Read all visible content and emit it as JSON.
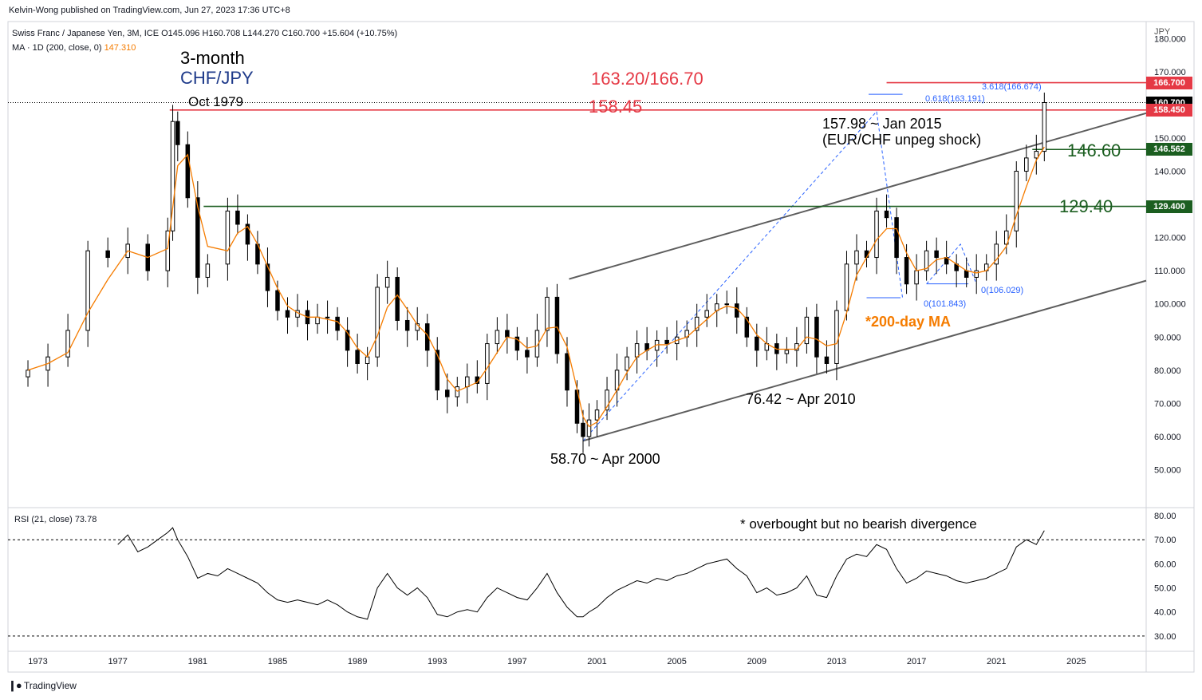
{
  "header": {
    "publisher": "Kelvin-Wong published on TradingView.com, Jun 27, 2023 17:36 UTC+8",
    "symbol_line": "Swiss Franc / Japanese Yen, 3M, ICE",
    "ohlc": {
      "o": "O145.096",
      "h": "H160.708",
      "l": "L144.270",
      "c": "C160.700",
      "chg": "+15.604 (+10.75%)"
    },
    "ma_line": "MA · 1D (200, close, 0)",
    "ma_value": "147.310",
    "rsi_line": "RSI (21, close)",
    "rsi_value": "73.78"
  },
  "footer": {
    "brand": "TradingView"
  },
  "axis": {
    "currency": "JPY"
  },
  "annotations": {
    "title1": "3-month",
    "title2": "CHF/JPY",
    "oct1979": "Oct 1979",
    "lvl_163": "163.20/166.70",
    "lvl_158": "158.45",
    "jan2015_1": "157.98 ~ Jan 2015",
    "jan2015_2": "(EUR/CHF unpeg shock)",
    "lvl_146": "146.60",
    "lvl_129": "129.40",
    "ma200": "*200-day MA",
    "apr2010": "76.42 ~ Apr 2010",
    "apr2000": "58.70 ~ Apr 2000",
    "fib618": "0.618(163.191)",
    "fib3618": "3.618(166.674)",
    "fib0a": "0(101.843)",
    "fib0b": "0(106.029)",
    "rsi_note": "* overbought but no bearish divergence"
  },
  "price_tags": [
    {
      "value": "166.700",
      "color": "#e53945"
    },
    {
      "value": "160.700",
      "color": "#000000"
    },
    {
      "value": "158.450",
      "color": "#e53945"
    },
    {
      "value": "146.562",
      "color": "#1b5e20"
    },
    {
      "value": "129.400",
      "color": "#1b5e20"
    }
  ],
  "colors": {
    "up": "#ffffff",
    "down": "#000000",
    "ma": "#f57c00",
    "resistance": "#e53945",
    "support": "#1b5e20",
    "channel": "#5d5d5d",
    "fib": "#2962ff"
  },
  "chart_data": [
    {
      "type": "candlestick",
      "title": "Swiss Franc / Japanese Yen, 3M, ICE",
      "x_range": [
        1971.5,
        2028.5
      ],
      "ylim": [
        40,
        182
      ],
      "x_ticks": [
        "1973",
        "1977",
        "1981",
        "1985",
        "1989",
        "1993",
        "1997",
        "2001",
        "2005",
        "2009",
        "2013",
        "2017",
        "2021",
        "2025"
      ],
      "y_ticks": [
        "50.000",
        "60.000",
        "70.000",
        "80.000",
        "90.000",
        "100.000",
        "110.000",
        "120.000",
        "130.000",
        "140.000",
        "150.000",
        "160.000",
        "170.000",
        "180.000"
      ],
      "series_close": [
        [
          1972.5,
          80
        ],
        [
          1973.5,
          84
        ],
        [
          1974.5,
          92
        ],
        [
          1975.5,
          116
        ],
        [
          1976.5,
          114
        ],
        [
          1977.5,
          118
        ],
        [
          1978.5,
          110
        ],
        [
          1979.5,
          122
        ],
        [
          1979.75,
          155
        ],
        [
          1980.0,
          148
        ],
        [
          1980.5,
          132
        ],
        [
          1981.0,
          108
        ],
        [
          1981.5,
          112
        ],
        [
          1982.5,
          128
        ],
        [
          1983.0,
          124
        ],
        [
          1983.5,
          118
        ],
        [
          1984.0,
          112
        ],
        [
          1984.5,
          104
        ],
        [
          1985.0,
          98
        ],
        [
          1985.5,
          96
        ],
        [
          1986.0,
          98
        ],
        [
          1986.5,
          94
        ],
        [
          1987.0,
          96
        ],
        [
          1987.5,
          96
        ],
        [
          1988.0,
          92
        ],
        [
          1988.5,
          86
        ],
        [
          1989.0,
          82
        ],
        [
          1989.5,
          84
        ],
        [
          1990.0,
          105
        ],
        [
          1990.5,
          108
        ],
        [
          1991.0,
          95
        ],
        [
          1991.5,
          92
        ],
        [
          1992.0,
          94
        ],
        [
          1992.5,
          86
        ],
        [
          1993.0,
          74
        ],
        [
          1993.5,
          72
        ],
        [
          1994.0,
          75
        ],
        [
          1994.5,
          78
        ],
        [
          1995.0,
          76
        ],
        [
          1995.5,
          88
        ],
        [
          1996.0,
          92
        ],
        [
          1996.5,
          90
        ],
        [
          1997.0,
          86
        ],
        [
          1997.5,
          84
        ],
        [
          1998.0,
          92
        ],
        [
          1998.5,
          102
        ],
        [
          1999.0,
          85
        ],
        [
          1999.5,
          74
        ],
        [
          2000.0,
          64
        ],
        [
          2000.3,
          60
        ],
        [
          2000.6,
          65
        ],
        [
          2001.0,
          68
        ],
        [
          2001.5,
          74
        ],
        [
          2002.0,
          80
        ],
        [
          2002.5,
          84
        ],
        [
          2003.0,
          88
        ],
        [
          2003.5,
          86
        ],
        [
          2004.0,
          89
        ],
        [
          2004.5,
          88
        ],
        [
          2005.0,
          90
        ],
        [
          2005.5,
          92
        ],
        [
          2006.0,
          96
        ],
        [
          2006.5,
          98
        ],
        [
          2007.0,
          100
        ],
        [
          2007.5,
          100
        ],
        [
          2008.0,
          96
        ],
        [
          2008.5,
          90
        ],
        [
          2009.0,
          86
        ],
        [
          2009.5,
          88
        ],
        [
          2010.0,
          85
        ],
        [
          2010.5,
          86
        ],
        [
          2011.0,
          88
        ],
        [
          2011.5,
          96
        ],
        [
          2012.0,
          84
        ],
        [
          2012.5,
          82
        ],
        [
          2013.0,
          98
        ],
        [
          2013.5,
          112
        ],
        [
          2014.0,
          116
        ],
        [
          2014.5,
          114
        ],
        [
          2015.0,
          128
        ],
        [
          2015.5,
          126
        ],
        [
          2016.0,
          114
        ],
        [
          2016.5,
          106
        ],
        [
          2017.0,
          110
        ],
        [
          2017.5,
          116
        ],
        [
          2018.0,
          114
        ],
        [
          2018.5,
          112
        ],
        [
          2019.0,
          110
        ],
        [
          2019.5,
          108
        ],
        [
          2020.0,
          110
        ],
        [
          2020.5,
          112
        ],
        [
          2021.0,
          118
        ],
        [
          2021.5,
          122
        ],
        [
          2022.0,
          140
        ],
        [
          2022.5,
          144
        ],
        [
          2023.0,
          146
        ],
        [
          2023.4,
          160.7
        ]
      ],
      "series_ma200": "follows close, 147.310 at last bar",
      "levels": [
        {
          "value": 166.7,
          "label": "163.20/166.70"
        },
        {
          "value": 158.45,
          "label": "158.45"
        },
        {
          "value": 146.562,
          "label": "146.60"
        },
        {
          "value": 129.4,
          "label": "129.40"
        }
      ],
      "channel": {
        "lower": [
          [
            2000.3,
            58.7
          ],
          [
            2028.5,
            107
          ]
        ],
        "upper": [
          [
            2000.3,
            109
          ],
          [
            2028.5,
            157
          ]
        ]
      }
    },
    {
      "type": "line",
      "title": "RSI (21, close)",
      "ylim": [
        25,
        82
      ],
      "y_ticks": [
        "30.00",
        "40.00",
        "50.00",
        "60.00",
        "70.00",
        "80.00"
      ],
      "levels": [
        70,
        30
      ],
      "series": [
        {
          "name": "RSI (21, close)",
          "values": [
            [
              1977.0,
              68
            ],
            [
              1977.5,
              72
            ],
            [
              1978.0,
              65
            ],
            [
              1978.5,
              67
            ],
            [
              1979.0,
              70
            ],
            [
              1979.5,
              73
            ],
            [
              1979.75,
              75
            ],
            [
              1980.0,
              70
            ],
            [
              1980.5,
              63
            ],
            [
              1981.0,
              54
            ],
            [
              1981.5,
              56
            ],
            [
              1982.0,
              55
            ],
            [
              1982.5,
              58
            ],
            [
              1983.0,
              56
            ],
            [
              1983.5,
              54
            ],
            [
              1984.0,
              52
            ],
            [
              1984.5,
              48
            ],
            [
              1985.0,
              45
            ],
            [
              1985.5,
              44
            ],
            [
              1986.0,
              45
            ],
            [
              1986.5,
              44
            ],
            [
              1987.0,
              43
            ],
            [
              1987.5,
              45
            ],
            [
              1988.0,
              43
            ],
            [
              1988.5,
              40
            ],
            [
              1989.0,
              38
            ],
            [
              1989.5,
              37
            ],
            [
              1990.0,
              50
            ],
            [
              1990.5,
              56
            ],
            [
              1991.0,
              50
            ],
            [
              1991.5,
              47
            ],
            [
              1992.0,
              50
            ],
            [
              1992.5,
              46
            ],
            [
              1993.0,
              39
            ],
            [
              1993.5,
              38
            ],
            [
              1994.0,
              40
            ],
            [
              1994.5,
              41
            ],
            [
              1995.0,
              40
            ],
            [
              1995.5,
              46
            ],
            [
              1996.0,
              50
            ],
            [
              1996.5,
              48
            ],
            [
              1997.0,
              46
            ],
            [
              1997.5,
              45
            ],
            [
              1998.0,
              50
            ],
            [
              1998.5,
              56
            ],
            [
              1999.0,
              48
            ],
            [
              1999.5,
              42
            ],
            [
              2000.0,
              38
            ],
            [
              2000.3,
              38
            ],
            [
              2000.6,
              40
            ],
            [
              2001.0,
              42
            ],
            [
              2001.5,
              46
            ],
            [
              2002.0,
              49
            ],
            [
              2002.5,
              51
            ],
            [
              2003.0,
              53
            ],
            [
              2003.5,
              52
            ],
            [
              2004.0,
              54
            ],
            [
              2004.5,
              53
            ],
            [
              2005.0,
              55
            ],
            [
              2005.5,
              56
            ],
            [
              2006.0,
              58
            ],
            [
              2006.5,
              60
            ],
            [
              2007.0,
              61
            ],
            [
              2007.5,
              62
            ],
            [
              2008.0,
              58
            ],
            [
              2008.5,
              55
            ],
            [
              2009.0,
              48
            ],
            [
              2009.5,
              50
            ],
            [
              2010.0,
              47
            ],
            [
              2010.5,
              48
            ],
            [
              2011.0,
              50
            ],
            [
              2011.5,
              55
            ],
            [
              2012.0,
              47
            ],
            [
              2012.5,
              46
            ],
            [
              2013.0,
              55
            ],
            [
              2013.5,
              62
            ],
            [
              2014.0,
              64
            ],
            [
              2014.5,
              63
            ],
            [
              2015.0,
              68
            ],
            [
              2015.5,
              66
            ],
            [
              2016.0,
              58
            ],
            [
              2016.5,
              52
            ],
            [
              2017.0,
              54
            ],
            [
              2017.5,
              57
            ],
            [
              2018.0,
              56
            ],
            [
              2018.5,
              55
            ],
            [
              2019.0,
              53
            ],
            [
              2019.5,
              52
            ],
            [
              2020.0,
              53
            ],
            [
              2020.5,
              54
            ],
            [
              2021.0,
              56
            ],
            [
              2021.5,
              58
            ],
            [
              2022.0,
              67
            ],
            [
              2022.5,
              70
            ],
            [
              2023.0,
              68
            ],
            [
              2023.4,
              73.78
            ]
          ]
        }
      ]
    }
  ]
}
